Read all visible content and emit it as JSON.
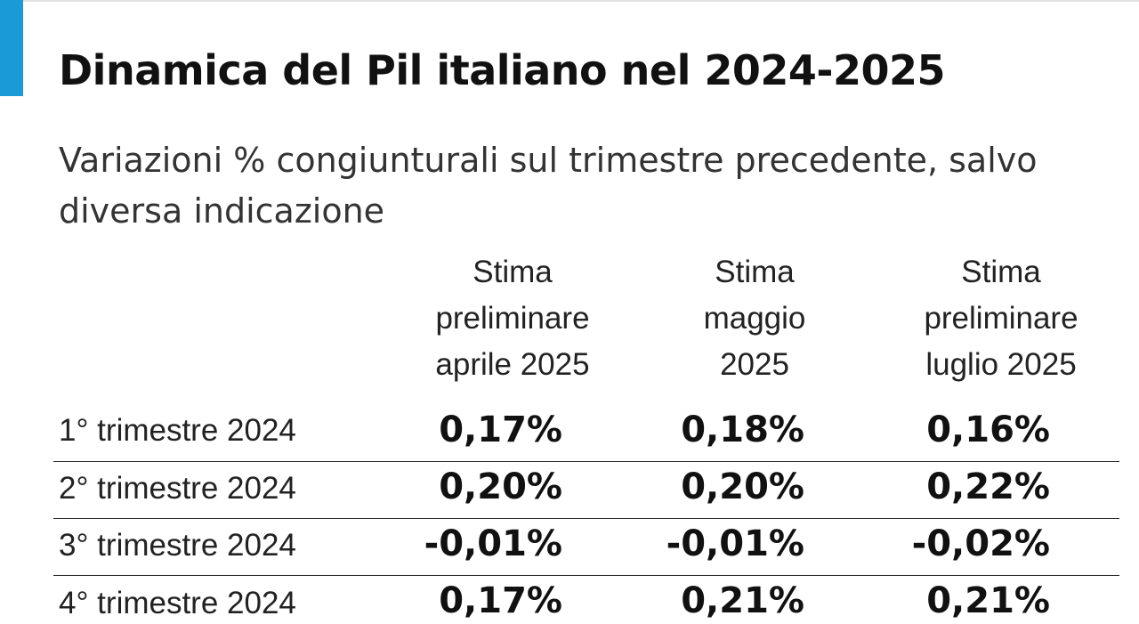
{
  "colors": {
    "accent": "#1a9ad6"
  },
  "title": "Dinamica del Pil italiano nel 2024-2025",
  "subtitle": "Variazioni % congiunturali sul trimestre precedente, salvo diversa indicazione",
  "columns": [
    {
      "lines": [
        "Stima",
        "preliminare",
        "aprile 2025"
      ]
    },
    {
      "lines": [
        "Stima",
        "maggio",
        "2025"
      ]
    },
    {
      "lines": [
        "Stima",
        "preliminare",
        "luglio 2025"
      ]
    }
  ],
  "rows": [
    {
      "label": "1° trimestre 2024",
      "values": [
        "0,17%",
        "0,18%",
        "0,16%"
      ]
    },
    {
      "label": "2° trimestre 2024",
      "values": [
        "0,20%",
        "0,20%",
        "0,22%"
      ]
    },
    {
      "label": "3° trimestre 2024",
      "values": [
        "-0,01%",
        "-0,01%",
        "-0,02%"
      ]
    },
    {
      "label": "4° trimestre 2024",
      "values": [
        "0,17%",
        "0,21%",
        "0,21%"
      ]
    }
  ]
}
